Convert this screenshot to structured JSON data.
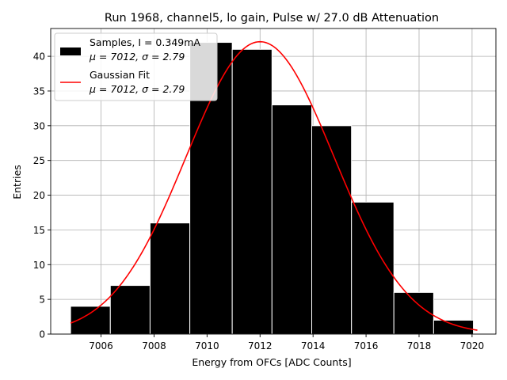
{
  "chart_data": {
    "type": "bar",
    "title": "Run 1968, channel5, lo gain, Pulse w/ 27.0 dB Attenuation",
    "xlabel": "Energy from OFCs [ADC Counts]",
    "ylabel": "Entries",
    "xlim": [
      7004.1,
      7020.9
    ],
    "ylim": [
      0,
      44
    ],
    "grid": true,
    "x_ticks": [
      7006,
      7008,
      7010,
      7012,
      7014,
      7016,
      7018,
      7020
    ],
    "y_ticks": [
      0,
      5,
      10,
      15,
      20,
      25,
      30,
      35,
      40
    ],
    "bins": [
      {
        "left": 7004.85,
        "right": 7006.35,
        "count": 4
      },
      {
        "left": 7006.35,
        "right": 7007.85,
        "count": 7
      },
      {
        "left": 7007.85,
        "right": 7009.35,
        "count": 16
      },
      {
        "left": 7009.35,
        "right": 7010.95,
        "count": 42
      },
      {
        "left": 7010.95,
        "right": 7012.45,
        "count": 41
      },
      {
        "left": 7012.45,
        "right": 7013.95,
        "count": 33
      },
      {
        "left": 7013.95,
        "right": 7015.45,
        "count": 30
      },
      {
        "left": 7015.45,
        "right": 7017.05,
        "count": 19
      },
      {
        "left": 7017.05,
        "right": 7018.55,
        "count": 6
      },
      {
        "left": 7018.55,
        "right": 7020.05,
        "count": 2
      }
    ],
    "fit": {
      "mu": 7012.0,
      "sigma": 2.79,
      "amplitude": 42.1,
      "x_range": [
        7004.85,
        7020.2
      ]
    },
    "series": [
      {
        "name": "Samples, I = 0.349mA",
        "stats": "μ = 7012, σ = 2.79",
        "color": "#000000"
      },
      {
        "name": "Gaussian Fit",
        "stats": "μ = 7012, σ = 2.79",
        "color": "#ff0000"
      }
    ],
    "legend_position": "top-left"
  }
}
